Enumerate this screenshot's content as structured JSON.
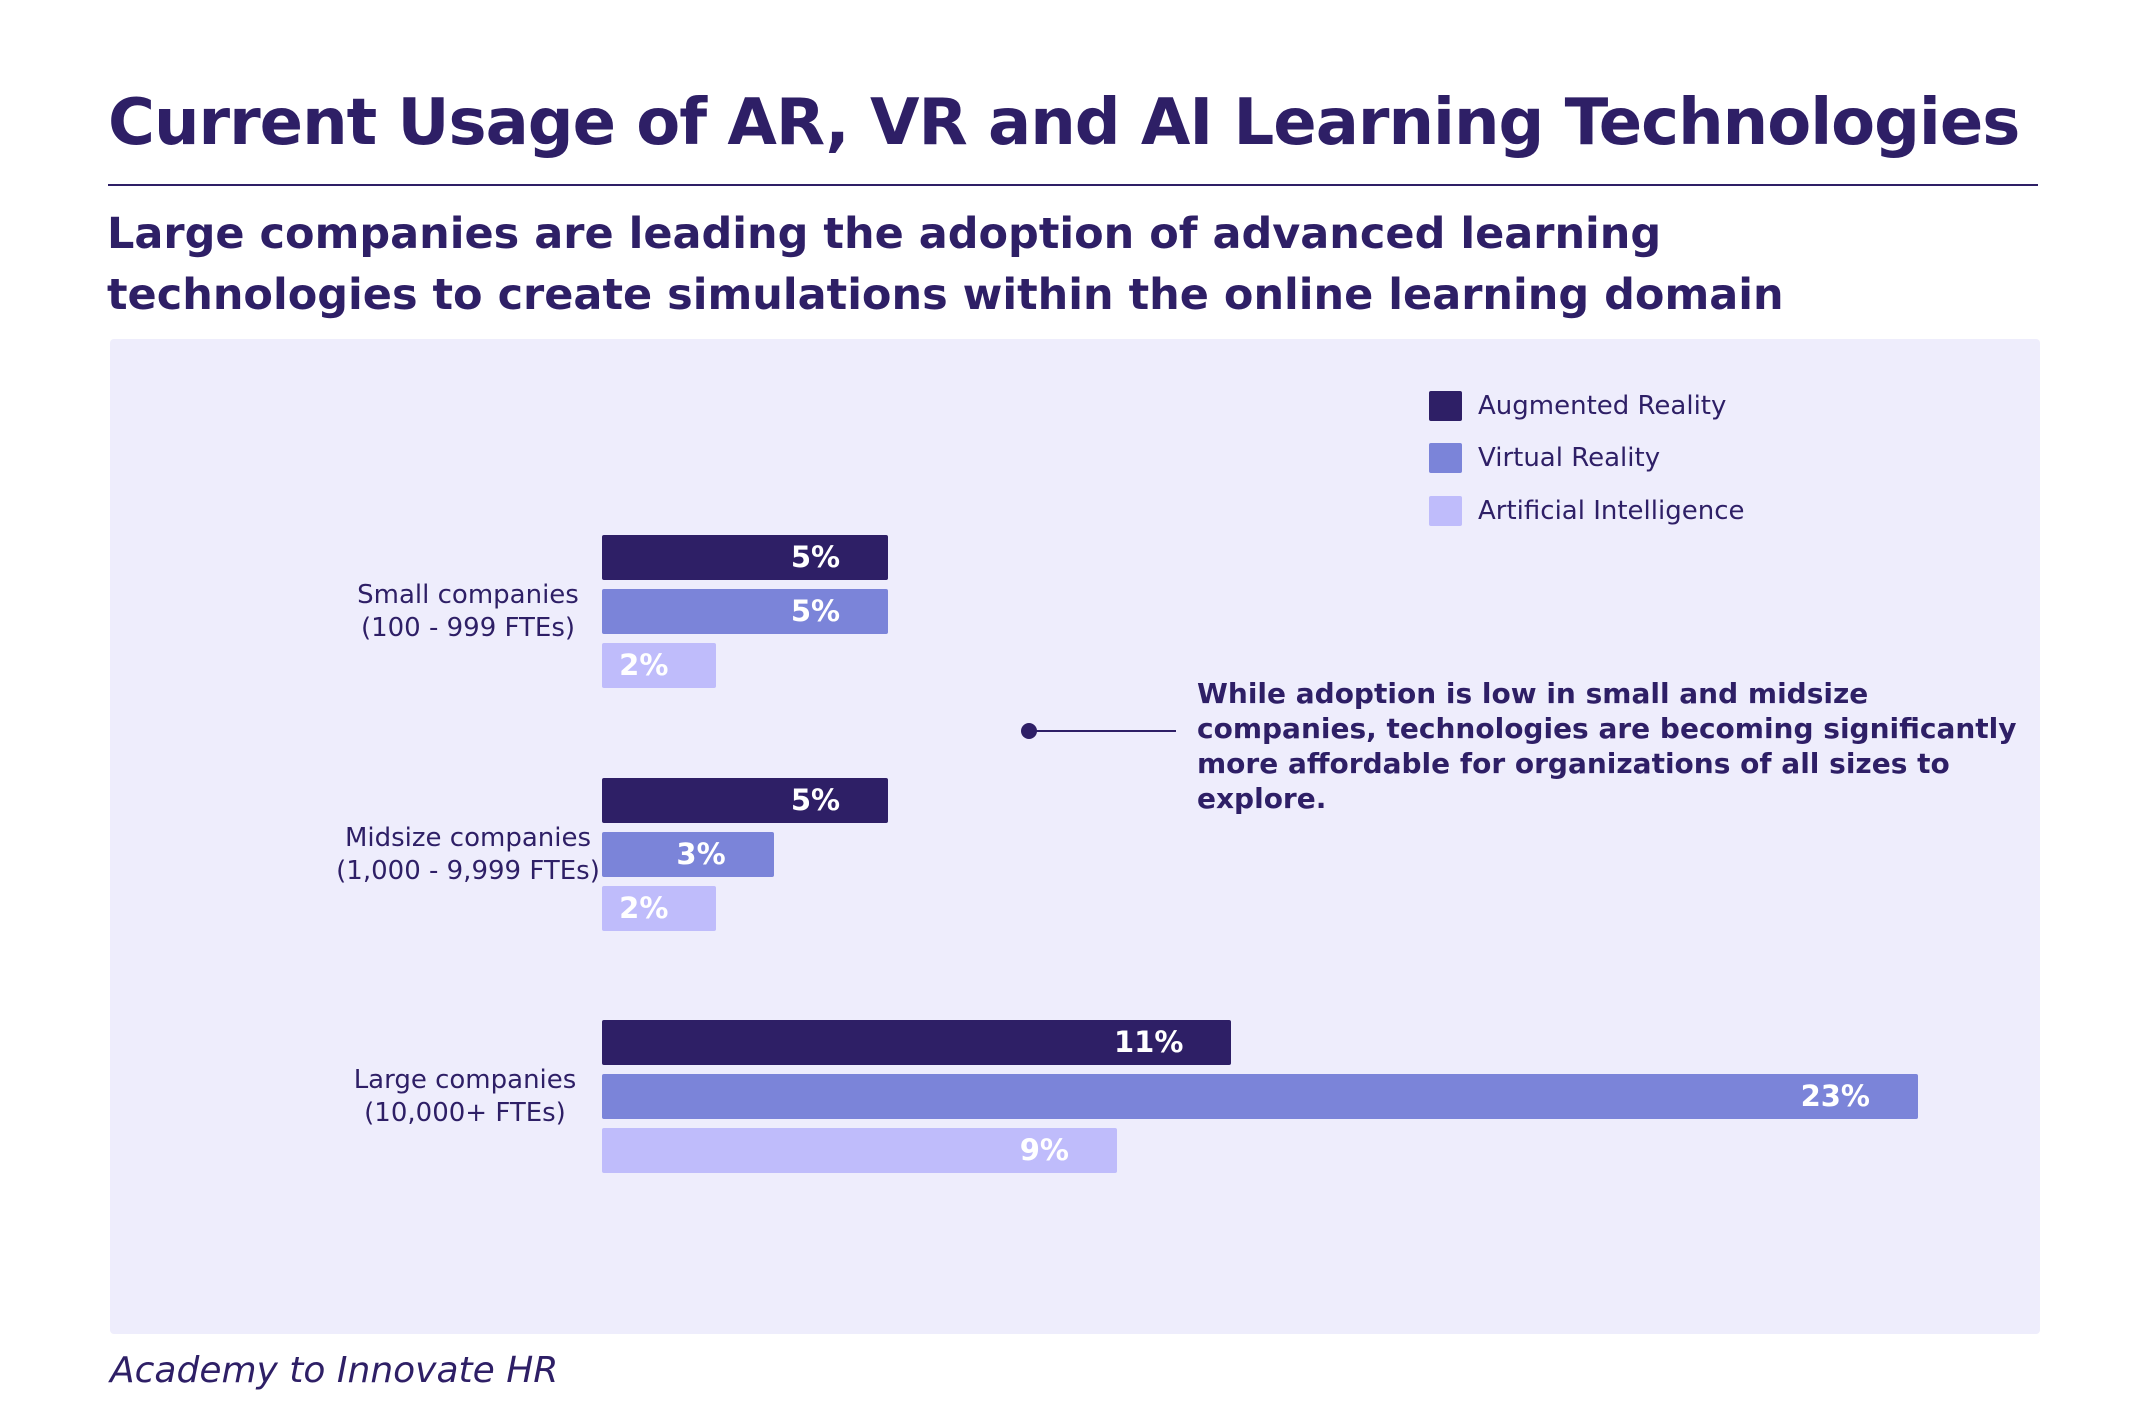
{
  "title": "Current Usage of AR, VR and AI Learning Technologies",
  "subtitle": "Large companies are leading the adoption of advanced learning technologies to create simulations within the online learning domain",
  "annotation": "While adoption is low in small and midsize companies, technologies are becoming significantly more affordable for organizations of all sizes to explore.",
  "source": "Academy to Innovate HR",
  "colors": {
    "augmented_reality": "#2e1f66",
    "virtual_reality": "#7b84d9",
    "artificial_intelligence": "#bfbcfb",
    "panel": "#eeedfc"
  },
  "chart_data": {
    "type": "bar",
    "orientation": "horizontal",
    "categories": [
      [
        "Small companies",
        "(100 - 999 FTEs)"
      ],
      [
        "Midsize companies",
        "(1,000 - 9,999 FTEs)"
      ],
      [
        "Large companies",
        "(10,000+ FTEs)"
      ]
    ],
    "series": [
      {
        "name": "Augmented Reality",
        "values": [
          5,
          5,
          11
        ],
        "labels": [
          "5%",
          "5%",
          "11%"
        ]
      },
      {
        "name": "Virtual Reality",
        "values": [
          5,
          3,
          23
        ],
        "labels": [
          "5%",
          "3%",
          "23%"
        ]
      },
      {
        "name": "Artificial Intelligence",
        "values": [
          2,
          2,
          9
        ],
        "labels": [
          "2%",
          "2%",
          "9%"
        ]
      }
    ],
    "unit": "%",
    "xlim": [
      0,
      23
    ],
    "grid": false,
    "legend": "top-right"
  }
}
